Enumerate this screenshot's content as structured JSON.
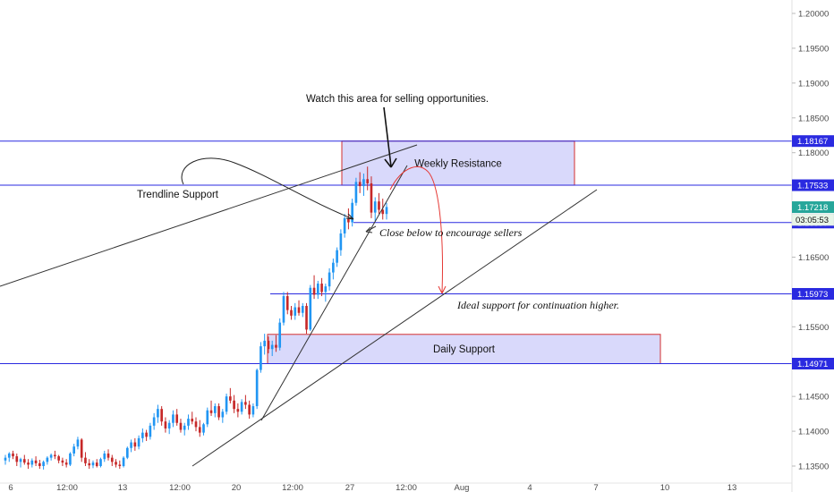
{
  "chart_data": {
    "type": "candlestick",
    "symbol_pair_note": "",
    "price_axis": {
      "ylim": [
        1.1345,
        1.2025
      ],
      "ticks": [
        "1.20000",
        "1.19500",
        "1.19000",
        "1.18500",
        "1.18000",
        "1.17500",
        "1.17000",
        "1.16500",
        "1.16000",
        "1.15500",
        "1.15000",
        "1.14500",
        "1.14000",
        "1.13500"
      ],
      "tick_values": [
        1.2,
        1.195,
        1.19,
        1.185,
        1.18,
        1.175,
        1.17,
        1.165,
        1.16,
        1.155,
        1.15,
        1.145,
        1.14,
        1.135
      ]
    },
    "time_axis": {
      "ticks": [
        "6",
        "12:00",
        "13",
        "12:00",
        "20",
        "12:00",
        "27",
        "12:00",
        "Aug",
        "4",
        "7",
        "10",
        "13"
      ]
    },
    "levels": [
      {
        "label": "1.18167",
        "value": 1.18167,
        "color": "#2a2ae0"
      },
      {
        "label": "1.17533",
        "value": 1.17533,
        "color": "#2a2ae0"
      },
      {
        "label": "1.16997",
        "value": 1.16997,
        "color": "#2a2ae0"
      },
      {
        "label": "1.15973",
        "value": 1.15973,
        "color": "#2a2ae0"
      },
      {
        "label": "1.14971",
        "value": 1.14971,
        "color": "#2a2ae0"
      }
    ],
    "last_price": {
      "label": "1.17218",
      "countdown": "03:05:53",
      "value": 1.17218,
      "color": "#26a69a"
    },
    "zones": [
      {
        "name": "weekly-resistance",
        "label": "Weekly Resistance",
        "from": 1.17533,
        "to": 1.18167
      },
      {
        "name": "daily-support",
        "label": "Daily Support",
        "from": 1.14971,
        "to": 1.15391
      }
    ],
    "annotations": {
      "watch": "Watch this area for selling opportunities.",
      "trendline": "Trendline Support",
      "close_below": "Close below to encourage sellers",
      "ideal_support": "Ideal support for continuation higher."
    },
    "candles": [
      [
        1.1358,
        1.1366,
        1.1352,
        1.1362
      ],
      [
        1.1362,
        1.137,
        1.1356,
        1.1368
      ],
      [
        1.1368,
        1.1372,
        1.136,
        1.1364
      ],
      [
        1.1364,
        1.1368,
        1.135,
        1.1356
      ],
      [
        1.1356,
        1.1362,
        1.1348,
        1.136
      ],
      [
        1.136,
        1.1366,
        1.1352,
        1.1355
      ],
      [
        1.1355,
        1.136,
        1.1346,
        1.1352
      ],
      [
        1.1352,
        1.1361,
        1.1348,
        1.1358
      ],
      [
        1.1358,
        1.1364,
        1.135,
        1.1354
      ],
      [
        1.1354,
        1.1359,
        1.1346,
        1.135
      ],
      [
        1.135,
        1.1358,
        1.1345,
        1.1356
      ],
      [
        1.1356,
        1.1364,
        1.1352,
        1.1362
      ],
      [
        1.1362,
        1.1368,
        1.1358,
        1.1366
      ],
      [
        1.1366,
        1.1372,
        1.136,
        1.1364
      ],
      [
        1.1364,
        1.1366,
        1.1354,
        1.1358
      ],
      [
        1.1358,
        1.1362,
        1.135,
        1.1355
      ],
      [
        1.1355,
        1.136,
        1.1348,
        1.1352
      ],
      [
        1.1352,
        1.137,
        1.135,
        1.1368
      ],
      [
        1.1368,
        1.1382,
        1.1364,
        1.1378
      ],
      [
        1.1378,
        1.1392,
        1.1374,
        1.1388
      ],
      [
        1.1388,
        1.139,
        1.1356,
        1.1362
      ],
      [
        1.1362,
        1.137,
        1.135,
        1.1354
      ],
      [
        1.1354,
        1.136,
        1.1346,
        1.1351
      ],
      [
        1.1351,
        1.1358,
        1.1347,
        1.1355
      ],
      [
        1.1355,
        1.136,
        1.1348,
        1.135
      ],
      [
        1.135,
        1.1362,
        1.1348,
        1.136
      ],
      [
        1.136,
        1.1372,
        1.1356,
        1.1368
      ],
      [
        1.1368,
        1.1374,
        1.1358,
        1.1362
      ],
      [
        1.1362,
        1.1366,
        1.135,
        1.1356
      ],
      [
        1.1356,
        1.136,
        1.1348,
        1.1352
      ],
      [
        1.1352,
        1.1358,
        1.1346,
        1.135
      ],
      [
        1.135,
        1.1364,
        1.1348,
        1.1362
      ],
      [
        1.1362,
        1.1378,
        1.136,
        1.1376
      ],
      [
        1.1376,
        1.1388,
        1.137,
        1.1384
      ],
      [
        1.1384,
        1.139,
        1.1372,
        1.1378
      ],
      [
        1.1378,
        1.1394,
        1.1374,
        1.139
      ],
      [
        1.139,
        1.1404,
        1.1384,
        1.1398
      ],
      [
        1.1398,
        1.1402,
        1.1386,
        1.1392
      ],
      [
        1.1392,
        1.1412,
        1.1388,
        1.1408
      ],
      [
        1.1408,
        1.1426,
        1.1402,
        1.142
      ],
      [
        1.142,
        1.1438,
        1.1412,
        1.1432
      ],
      [
        1.1432,
        1.1436,
        1.1408,
        1.1414
      ],
      [
        1.1414,
        1.142,
        1.1398,
        1.1404
      ],
      [
        1.1404,
        1.1416,
        1.1396,
        1.1412
      ],
      [
        1.1412,
        1.143,
        1.1406,
        1.1424
      ],
      [
        1.1424,
        1.1432,
        1.1408,
        1.1412
      ],
      [
        1.1412,
        1.1418,
        1.1398,
        1.1402
      ],
      [
        1.1402,
        1.1412,
        1.1394,
        1.1408
      ],
      [
        1.1408,
        1.1424,
        1.1402,
        1.1418
      ],
      [
        1.1418,
        1.1428,
        1.141,
        1.1414
      ],
      [
        1.1414,
        1.142,
        1.14,
        1.1406
      ],
      [
        1.1406,
        1.1416,
        1.1392,
        1.1398
      ],
      [
        1.1398,
        1.1412,
        1.1394,
        1.141
      ],
      [
        1.141,
        1.1434,
        1.1406,
        1.143
      ],
      [
        1.143,
        1.1444,
        1.1422,
        1.1426
      ],
      [
        1.1426,
        1.144,
        1.142,
        1.1436
      ],
      [
        1.1436,
        1.144,
        1.1416,
        1.142
      ],
      [
        1.142,
        1.1432,
        1.1412,
        1.1428
      ],
      [
        1.1428,
        1.1454,
        1.1424,
        1.145
      ],
      [
        1.145,
        1.1462,
        1.144,
        1.1444
      ],
      [
        1.1444,
        1.1452,
        1.1426,
        1.1432
      ],
      [
        1.1432,
        1.144,
        1.142,
        1.1428
      ],
      [
        1.1428,
        1.1446,
        1.1424,
        1.1442
      ],
      [
        1.1442,
        1.1452,
        1.1432,
        1.1438
      ],
      [
        1.1438,
        1.1444,
        1.1418,
        1.1424
      ],
      [
        1.1424,
        1.144,
        1.142,
        1.1436
      ],
      [
        1.1436,
        1.149,
        1.1432,
        1.1488
      ],
      [
        1.1488,
        1.1528,
        1.1484,
        1.1522
      ],
      [
        1.1522,
        1.154,
        1.151,
        1.153
      ],
      [
        1.153,
        1.1536,
        1.1512,
        1.1518
      ],
      [
        1.1518,
        1.153,
        1.1508,
        1.1524
      ],
      [
        1.1524,
        1.1538,
        1.1514,
        1.152
      ],
      [
        1.152,
        1.1562,
        1.1516,
        1.1556
      ],
      [
        1.1556,
        1.16,
        1.1552,
        1.1594
      ],
      [
        1.1594,
        1.16,
        1.1568,
        1.1574
      ],
      [
        1.1574,
        1.158,
        1.156,
        1.1566
      ],
      [
        1.1566,
        1.1584,
        1.156,
        1.1578
      ],
      [
        1.1578,
        1.1588,
        1.1566,
        1.157
      ],
      [
        1.157,
        1.1584,
        1.1564,
        1.158
      ],
      [
        1.158,
        1.1584,
        1.154,
        1.1546
      ],
      [
        1.1546,
        1.161,
        1.1544,
        1.1606
      ],
      [
        1.1606,
        1.1624,
        1.159,
        1.1596
      ],
      [
        1.1596,
        1.1616,
        1.159,
        1.1612
      ],
      [
        1.1612,
        1.162,
        1.1594,
        1.16
      ],
      [
        1.16,
        1.1612,
        1.1586,
        1.1608
      ],
      [
        1.1608,
        1.1634,
        1.1602,
        1.1628
      ],
      [
        1.1628,
        1.1648,
        1.1618,
        1.1642
      ],
      [
        1.1642,
        1.1664,
        1.1636,
        1.166
      ],
      [
        1.166,
        1.169,
        1.1652,
        1.1684
      ],
      [
        1.1684,
        1.1712,
        1.1678,
        1.1706
      ],
      [
        1.1706,
        1.172,
        1.169,
        1.17
      ],
      [
        1.17,
        1.1734,
        1.1694,
        1.1728
      ],
      [
        1.1728,
        1.1764,
        1.1724,
        1.1758
      ],
      [
        1.1758,
        1.1772,
        1.1742,
        1.1752
      ],
      [
        1.1752,
        1.177,
        1.1738,
        1.1762
      ],
      [
        1.1762,
        1.178,
        1.1746,
        1.1756
      ],
      [
        1.1756,
        1.1766,
        1.1706,
        1.1714
      ],
      [
        1.1714,
        1.1736,
        1.1702,
        1.173
      ],
      [
        1.173,
        1.1742,
        1.1712,
        1.1718
      ],
      [
        1.1718,
        1.1734,
        1.1704,
        1.1712
      ],
      [
        1.1712,
        1.1728,
        1.1704,
        1.1722
      ]
    ]
  }
}
